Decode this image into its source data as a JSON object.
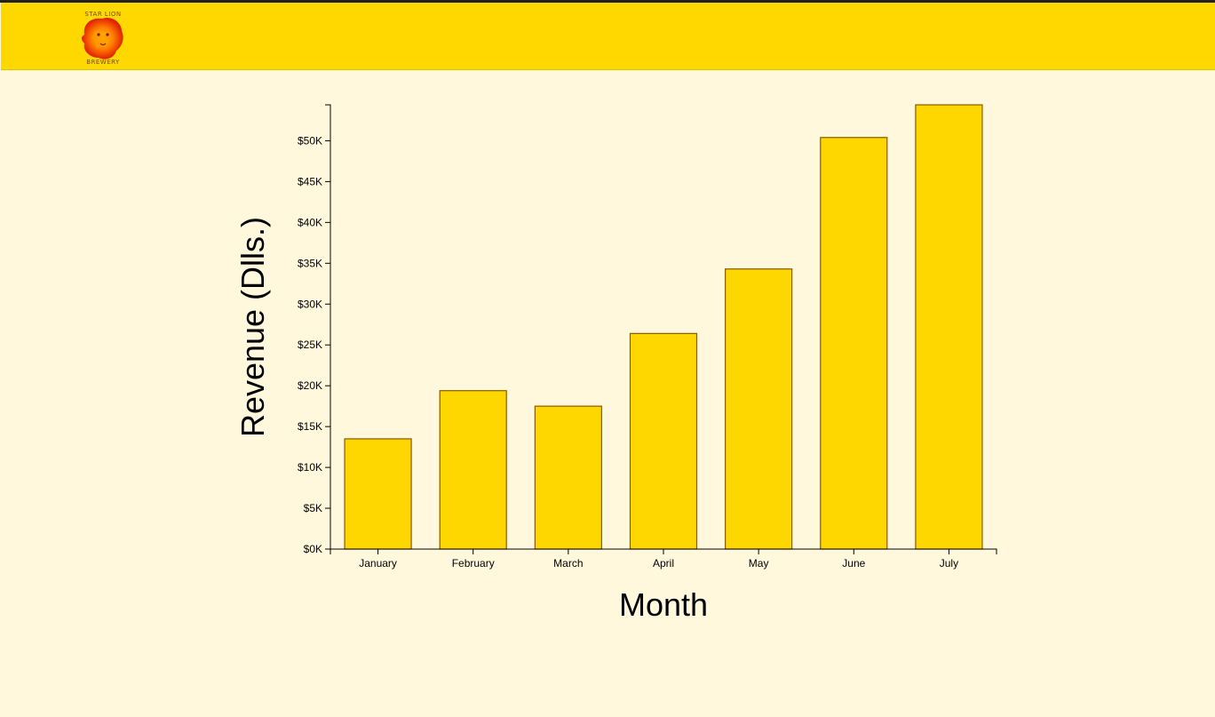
{
  "navbar": {
    "logo": {
      "icon": "lion-head-icon",
      "text_top": "STAR LION",
      "text_bottom": "BREWERY"
    }
  },
  "colors": {
    "background": "#fff8dc",
    "navbar": "#ffd800",
    "bar_fill": "#ffd700",
    "bar_stroke": "#8b5a00"
  },
  "chart_data": {
    "type": "bar",
    "title": "",
    "xlabel": "Month",
    "ylabel": "Revenue (Dlls.)",
    "categories": [
      "January",
      "February",
      "March",
      "April",
      "May",
      "June",
      "July"
    ],
    "values": [
      13500,
      19400,
      17500,
      26400,
      34300,
      50400,
      54400
    ],
    "ylim": [
      0,
      54400
    ],
    "yticks": [
      0,
      5000,
      10000,
      15000,
      20000,
      25000,
      30000,
      35000,
      40000,
      45000,
      50000
    ],
    "ytick_labels": [
      "$0K",
      "$5K",
      "$10K",
      "$15K",
      "$20K",
      "$25K",
      "$30K",
      "$35K",
      "$40K",
      "$45K",
      "$50K"
    ],
    "grid": false,
    "legend": "none"
  }
}
